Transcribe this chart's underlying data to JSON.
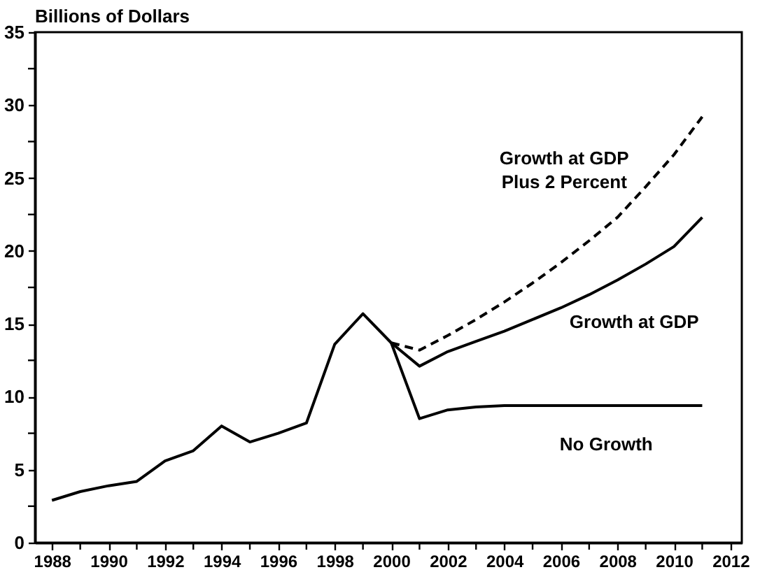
{
  "chart_data": {
    "type": "line",
    "ylabel": "Billions of Dollars",
    "xlim": [
      1987.4,
      2012.4
    ],
    "xticks": [
      1988,
      {
        "value": 1989,
        "label": null
      },
      1990,
      {
        "value": 1991,
        "label": null
      },
      1992,
      {
        "value": 1993,
        "label": null
      },
      1994,
      {
        "value": 1995,
        "label": null
      },
      1996,
      {
        "value": 1997,
        "label": null
      },
      1998,
      {
        "value": 1999,
        "label": null
      },
      2000,
      {
        "value": 2001,
        "label": null
      },
      2002,
      {
        "value": 2003,
        "label": null
      },
      2004,
      {
        "value": 2005,
        "label": null
      },
      2006,
      {
        "value": 2007,
        "label": null
      },
      2008,
      {
        "value": 2009,
        "label": null
      },
      2010,
      {
        "value": 2011,
        "label": null
      },
      2012
    ],
    "ylim": [
      0,
      35
    ],
    "yticks": [
      0,
      {
        "value": 2.5,
        "label": null
      },
      5,
      {
        "value": 7.5,
        "label": null
      },
      10,
      {
        "value": 12.5,
        "label": null
      },
      15,
      {
        "value": 17.5,
        "label": null
      },
      20,
      {
        "value": 22.5,
        "label": null
      },
      25,
      {
        "value": 27.5,
        "label": null
      },
      30,
      {
        "value": 32.5,
        "label": null
      },
      35
    ],
    "grid": false,
    "series": [
      {
        "name": "Growth at GDP\nPlus 2 Percent",
        "color": "#000000",
        "line_style": "dashed",
        "x": [
          2000,
          2001,
          2002,
          2003,
          2004,
          2005,
          2006,
          2007,
          2008,
          2009,
          2010,
          2011
        ],
        "values": [
          13.7,
          13.2,
          14.2,
          15.3,
          16.5,
          17.8,
          19.2,
          20.7,
          22.3,
          24.4,
          26.6,
          29.2
        ]
      },
      {
        "name": "Growth at GDP",
        "color": "#000000",
        "line_style": "solid",
        "x": [
          1988,
          1989,
          1990,
          1991,
          1992,
          1993,
          1994,
          1995,
          1996,
          1997,
          1998,
          1999,
          2000,
          2001,
          2002,
          2003,
          2004,
          2005,
          2006,
          2007,
          2008,
          2009,
          2010,
          2011
        ],
        "values": [
          2.9,
          3.5,
          3.9,
          4.2,
          5.6,
          6.3,
          8.0,
          6.9,
          7.5,
          8.2,
          13.6,
          15.7,
          13.7,
          12.1,
          13.1,
          13.8,
          14.5,
          15.3,
          16.1,
          17.0,
          18.0,
          19.1,
          20.3,
          22.3
        ]
      },
      {
        "name": "No Growth",
        "color": "#000000",
        "line_style": "solid",
        "x": [
          2000,
          2001,
          2002,
          2003,
          2004,
          2005,
          2006,
          2007,
          2008,
          2009,
          2010,
          2011
        ],
        "values": [
          13.7,
          8.5,
          9.1,
          9.3,
          9.4,
          9.4,
          9.4,
          9.4,
          9.4,
          9.4,
          9.4,
          9.4
        ]
      }
    ]
  }
}
